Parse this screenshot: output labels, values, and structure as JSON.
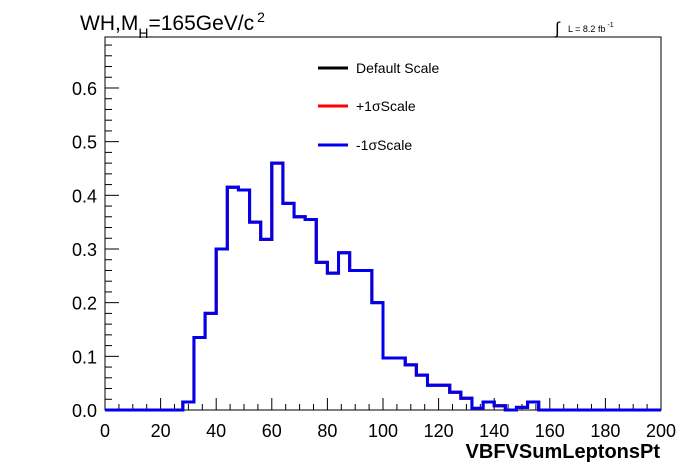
{
  "chart_data": {
    "type": "step",
    "title": {
      "prefix": "WH,M",
      "subscript": "H",
      "suffix": "=165GeV/c",
      "superscript": "2"
    },
    "luminosity": {
      "integral_symbol": "∫",
      "text": "L = 8.2 fb",
      "superscript": "-1"
    },
    "xlabel": "VBFVSumLeptonsPt",
    "ylabel": "",
    "xlim": [
      0,
      200
    ],
    "ylim": [
      0,
      0.695
    ],
    "x_ticks": [
      "0",
      "20",
      "40",
      "60",
      "80",
      "100",
      "120",
      "140",
      "160",
      "180",
      "200"
    ],
    "y_ticks": [
      "0.0",
      "0.1",
      "0.2",
      "0.3",
      "0.4",
      "0.5",
      "0.6"
    ],
    "bin_edges": [
      0,
      4,
      8,
      12,
      16,
      20,
      24,
      28,
      32,
      36,
      40,
      44,
      48,
      52,
      56,
      60,
      64,
      68,
      72,
      76,
      80,
      84,
      88,
      92,
      96,
      100,
      104,
      108,
      112,
      116,
      120,
      124,
      128,
      132,
      136,
      140,
      144,
      148,
      152,
      156,
      160,
      164,
      168,
      172,
      176,
      180,
      184,
      188,
      192,
      196,
      200
    ],
    "series": [
      {
        "name": "Default Scale",
        "color": "#000000",
        "values": [
          0,
          0,
          0,
          0,
          0,
          0,
          0,
          0.015,
          0.135,
          0.18,
          0.3,
          0.415,
          0.41,
          0.35,
          0.318,
          0.46,
          0.385,
          0.36,
          0.355,
          0.275,
          0.255,
          0.293,
          0.26,
          0.26,
          0.2,
          0.097,
          0.097,
          0.084,
          0.065,
          0.046,
          0.046,
          0.033,
          0.022,
          0.003,
          0.015,
          0.008,
          0,
          0.005,
          0.015,
          0,
          0,
          0,
          0,
          0,
          0,
          0,
          0,
          0,
          0,
          0
        ]
      },
      {
        "name": "+1σScale",
        "color": "#ff0000",
        "values": [
          0,
          0,
          0,
          0,
          0,
          0,
          0,
          0.015,
          0.135,
          0.18,
          0.3,
          0.415,
          0.41,
          0.35,
          0.318,
          0.46,
          0.385,
          0.36,
          0.355,
          0.275,
          0.255,
          0.293,
          0.26,
          0.26,
          0.2,
          0.097,
          0.097,
          0.084,
          0.065,
          0.046,
          0.046,
          0.033,
          0.022,
          0.003,
          0.015,
          0.008,
          0,
          0.005,
          0.015,
          0,
          0,
          0,
          0,
          0,
          0,
          0,
          0,
          0,
          0,
          0
        ]
      },
      {
        "name": "-1σScale",
        "color": "#0000ee",
        "values": [
          0,
          0,
          0,
          0,
          0,
          0,
          0,
          0.015,
          0.135,
          0.18,
          0.3,
          0.415,
          0.41,
          0.35,
          0.318,
          0.46,
          0.385,
          0.36,
          0.355,
          0.275,
          0.255,
          0.293,
          0.26,
          0.26,
          0.2,
          0.097,
          0.097,
          0.084,
          0.065,
          0.046,
          0.046,
          0.033,
          0.022,
          0.003,
          0.015,
          0.008,
          0,
          0.005,
          0.015,
          0,
          0,
          0,
          0,
          0,
          0,
          0,
          0,
          0,
          0,
          0
        ]
      }
    ],
    "legend": [
      "Default Scale",
      "+1σScale",
      "-1σScale"
    ],
    "grid": false
  }
}
